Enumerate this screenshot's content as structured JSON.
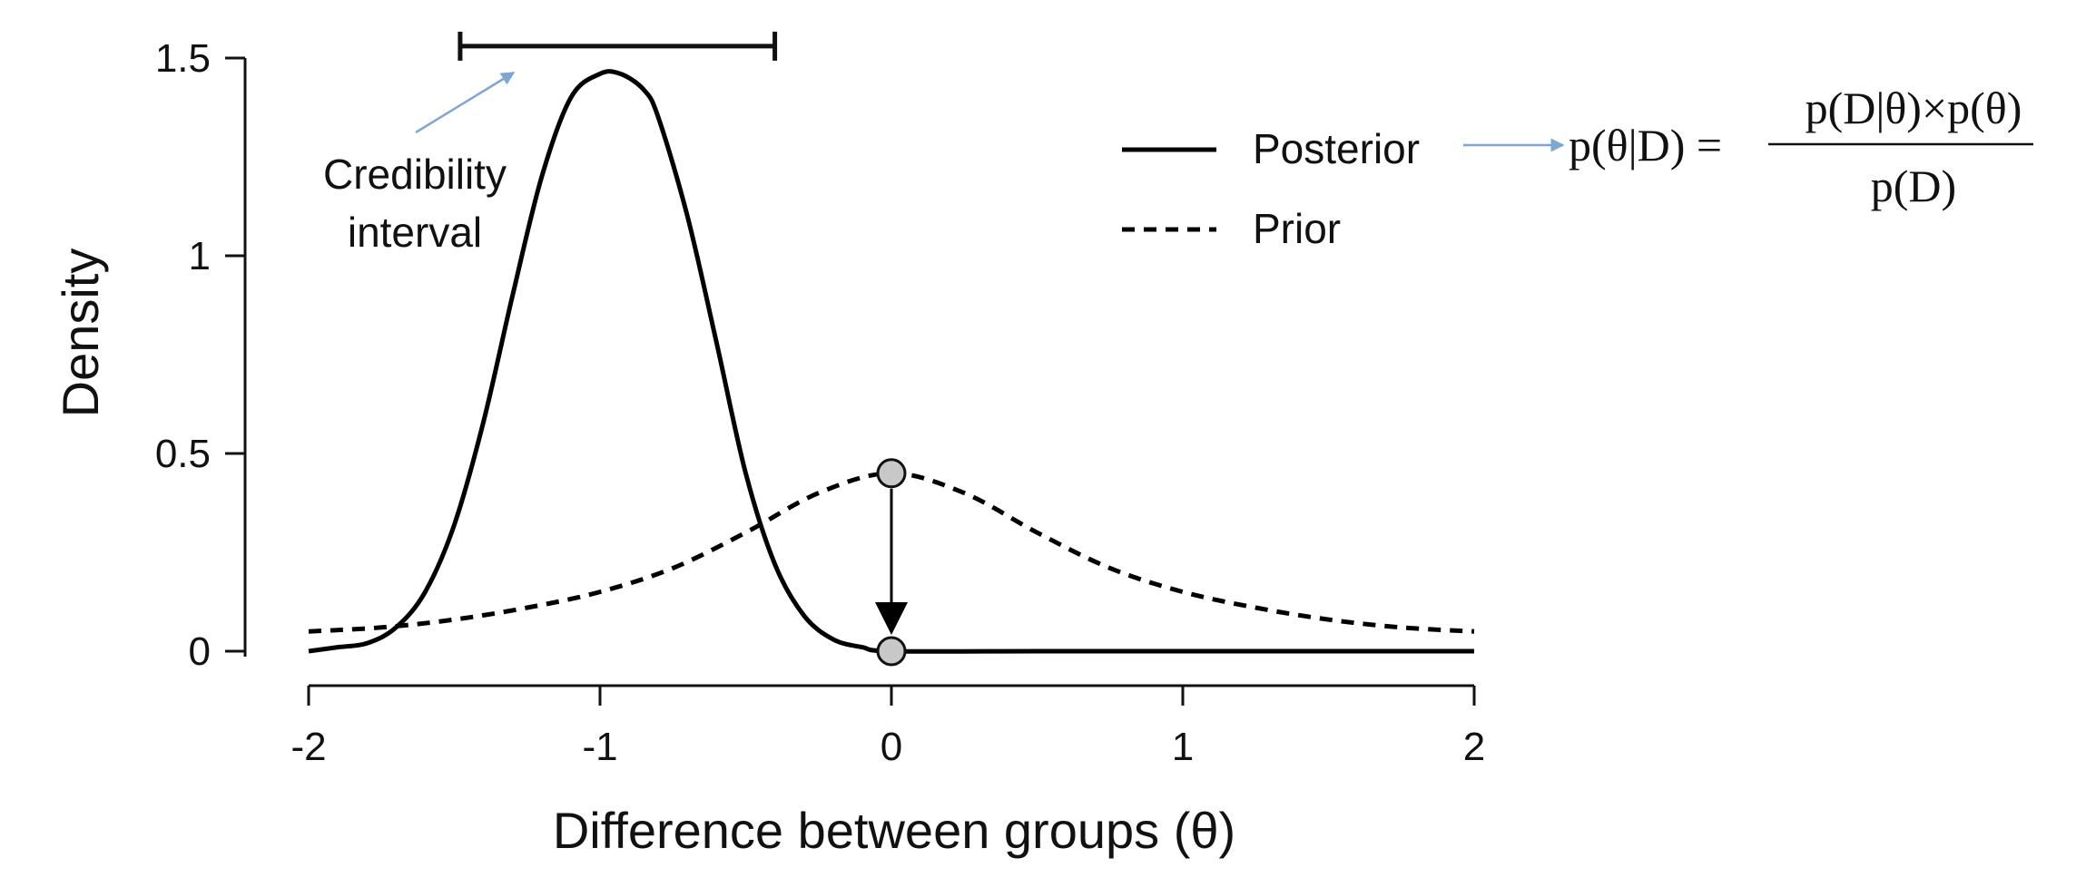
{
  "chart_data": {
    "type": "line",
    "xlabel": "Difference between groups (θ)",
    "ylabel": "Density",
    "xlim": [
      -2,
      2
    ],
    "ylim": [
      0,
      1.5
    ],
    "x_ticks": [
      -2,
      -1,
      0,
      1,
      2
    ],
    "x_tick_labels": [
      "-2",
      "-1",
      "0",
      "1",
      "2"
    ],
    "y_ticks": [
      0,
      0.5,
      1,
      1.5
    ],
    "y_tick_labels": [
      "0",
      "0.5",
      "1",
      "1.5"
    ],
    "grid": false,
    "legend_position": "top-right",
    "series": [
      {
        "name": "Posterior",
        "style": "solid",
        "color": "#000000",
        "x": [
          -2.0,
          -1.9,
          -1.8,
          -1.7,
          -1.6,
          -1.5,
          -1.4,
          -1.3,
          -1.2,
          -1.1,
          -1.0,
          -0.93,
          -0.85,
          -0.8,
          -0.7,
          -0.6,
          -0.5,
          -0.4,
          -0.3,
          -0.2,
          -0.1,
          0.0,
          0.5,
          1.0,
          1.5,
          2.0
        ],
        "y": [
          0.0,
          0.01,
          0.02,
          0.06,
          0.15,
          0.32,
          0.58,
          0.9,
          1.2,
          1.4,
          1.46,
          1.46,
          1.42,
          1.35,
          1.1,
          0.78,
          0.45,
          0.22,
          0.09,
          0.03,
          0.01,
          0.0,
          0.0,
          0.0,
          0.0,
          0.0
        ]
      },
      {
        "name": "Prior",
        "style": "dashed",
        "color": "#000000",
        "x": [
          -2.0,
          -1.75,
          -1.5,
          -1.25,
          -1.0,
          -0.75,
          -0.5,
          -0.25,
          0.0,
          0.25,
          0.5,
          0.75,
          1.0,
          1.25,
          1.5,
          1.75,
          2.0
        ],
        "y": [
          0.05,
          0.06,
          0.08,
          0.11,
          0.15,
          0.21,
          0.3,
          0.4,
          0.45,
          0.4,
          0.3,
          0.21,
          0.15,
          0.11,
          0.08,
          0.06,
          0.05
        ]
      }
    ],
    "points": [
      {
        "x": 0,
        "y": 0.45,
        "color": "#c8c8c8"
      },
      {
        "x": 0,
        "y": 0.0,
        "color": "#c8c8c8"
      }
    ],
    "arrow": {
      "x": 0,
      "from_y": 0.45,
      "to_y": 0.0
    },
    "credibility_interval": {
      "x_from": -1.48,
      "x_to": -0.4,
      "y": 1.53
    },
    "annotations": {
      "credibility_line1": "Credibility",
      "credibility_line2": "interval"
    },
    "formula": {
      "lhs": "p(θ|D) =",
      "numerator": "p(D|θ)×p(θ)",
      "denominator": "p(D)"
    },
    "colors": {
      "annotation_arrow": "#7ea6d2",
      "marker_fill": "#c8c8c8"
    }
  }
}
